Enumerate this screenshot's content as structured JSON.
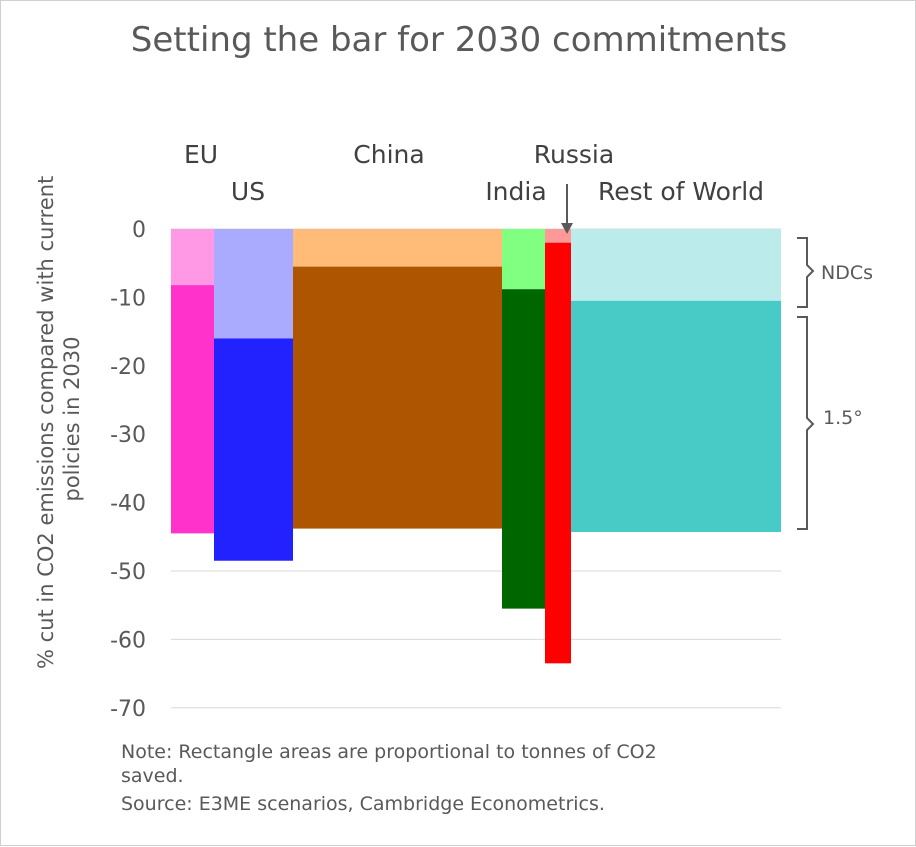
{
  "chart_data": {
    "type": "bar",
    "title": "Setting the bar for 2030 commitments",
    "ylabel": "% cut in CO2 emissions compared with current policies in 2030",
    "ylim": [
      -70,
      0
    ],
    "yticks": [
      0,
      -10,
      -20,
      -30,
      -40,
      -50,
      -60,
      -70
    ],
    "grid": true,
    "series_names": [
      "NDCs",
      "1.5°"
    ],
    "categories": [
      "EU",
      "US",
      "China",
      "India",
      "Russia",
      "Rest of World"
    ],
    "ndc_values": [
      -8.2,
      -16,
      -5.5,
      -8.8,
      -2,
      -10.5
    ],
    "target_1_5_values": [
      -44.5,
      -48.5,
      -43.8,
      -55.5,
      -63.5,
      -44.3
    ],
    "colors": {
      "EU": {
        "ndc": "#FF99E6",
        "target": "#FF33CC"
      },
      "US": {
        "ndc": "#AAAAFF",
        "target": "#2222FF"
      },
      "China": {
        "ndc": "#FFBB77",
        "target": "#AD5500"
      },
      "India": {
        "ndc": "#80FF80",
        "target": "#006600"
      },
      "Russia": {
        "ndc": "#FF9999",
        "target": "#FF0000"
      },
      "Rest of World": {
        "ndc": "#BBEBEB",
        "target": "#48CAC6"
      }
    },
    "annotations": [
      "NDCs",
      "1.5°"
    ]
  },
  "note": {
    "line1": "Note: Rectangle areas are proportional to tonnes of CO2",
    "line2": "saved.",
    "line3": "Source: E3ME scenarios, Cambridge Econometrics."
  }
}
